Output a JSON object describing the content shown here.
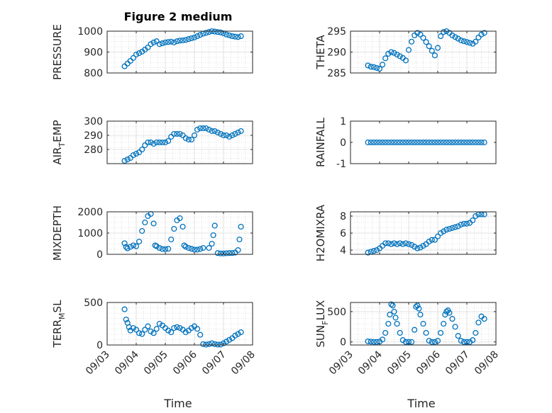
{
  "title": "Figure 2 medium",
  "xlabel": "Time",
  "x_ticks": [
    "09/03",
    "09/04",
    "09/05",
    "09/06",
    "09/07",
    "09/08"
  ],
  "marker_color": "#0072BD",
  "chart_data": [
    {
      "type": "scatter",
      "ylabel": "PRESSURE",
      "ylim": [
        800,
        1000
      ],
      "yticks": [
        "800",
        "900",
        "1000"
      ],
      "xlim": [
        3,
        8
      ],
      "grid": "on",
      "x": [
        3.6,
        3.7,
        3.8,
        3.9,
        4.0,
        4.1,
        4.2,
        4.3,
        4.4,
        4.5,
        4.6,
        4.7,
        4.8,
        4.9,
        5.0,
        5.1,
        5.2,
        5.3,
        5.4,
        5.5,
        5.6,
        5.7,
        5.8,
        5.9,
        6.0,
        6.1,
        6.2,
        6.3,
        6.4,
        6.5,
        6.6,
        6.7,
        6.8,
        6.9,
        7.0,
        7.1,
        7.2,
        7.3,
        7.4,
        7.5,
        7.6
      ],
      "y": [
        832,
        845,
        858,
        872,
        888,
        895,
        902,
        912,
        922,
        938,
        946,
        952,
        938,
        942,
        946,
        948,
        950,
        946,
        952,
        955,
        956,
        958,
        962,
        966,
        970,
        976,
        982,
        988,
        992,
        996,
        1000,
        998,
        996,
        994,
        990,
        984,
        980,
        976,
        974,
        972,
        976
      ]
    },
    {
      "type": "scatter",
      "ylabel": "THETA",
      "ylim": [
        285,
        295
      ],
      "yticks": [
        "285",
        "290",
        "295"
      ],
      "xlim": [
        3,
        8
      ],
      "grid": "on",
      "x": [
        3.6,
        3.7,
        3.8,
        3.9,
        4.0,
        4.1,
        4.2,
        4.3,
        4.4,
        4.5,
        4.6,
        4.7,
        4.8,
        4.9,
        5.0,
        5.1,
        5.2,
        5.3,
        5.4,
        5.5,
        5.6,
        5.7,
        5.8,
        5.9,
        6.0,
        6.1,
        6.2,
        6.3,
        6.4,
        6.5,
        6.6,
        6.7,
        6.8,
        6.9,
        7.0,
        7.1,
        7.2,
        7.3,
        7.4,
        7.5,
        7.6
      ],
      "y": [
        286.8,
        286.5,
        286.4,
        286.2,
        286.0,
        287.0,
        288.5,
        289.6,
        290.0,
        289.8,
        289.4,
        289.0,
        288.6,
        288.0,
        290.5,
        292.5,
        294.0,
        294.6,
        294.2,
        293.4,
        292.4,
        291.4,
        290.3,
        289.2,
        291.0,
        293.8,
        294.8,
        295.0,
        294.6,
        294.0,
        293.6,
        293.2,
        292.8,
        292.6,
        292.4,
        292.2,
        292.0,
        292.5,
        293.5,
        294.2,
        294.6
      ]
    },
    {
      "type": "scatter",
      "ylabel": "AIR_TEMP",
      "ylim": [
        270,
        300
      ],
      "yticks": [
        "280",
        "290",
        "300"
      ],
      "xlim": [
        3,
        8
      ],
      "grid": "on",
      "x": [
        3.6,
        3.7,
        3.8,
        3.9,
        4.0,
        4.1,
        4.2,
        4.3,
        4.4,
        4.5,
        4.6,
        4.7,
        4.8,
        4.9,
        5.0,
        5.1,
        5.2,
        5.3,
        5.4,
        5.5,
        5.6,
        5.7,
        5.8,
        5.9,
        6.0,
        6.1,
        6.2,
        6.3,
        6.4,
        6.5,
        6.6,
        6.7,
        6.8,
        6.9,
        7.0,
        7.1,
        7.2,
        7.3,
        7.4,
        7.5,
        7.6
      ],
      "y": [
        272,
        273,
        274,
        276,
        277,
        278,
        280,
        283,
        285,
        285,
        284,
        285,
        285,
        285,
        285,
        286,
        289,
        291,
        291,
        291,
        290,
        288,
        287,
        287,
        290,
        294,
        295,
        295,
        295,
        294,
        293,
        293,
        292,
        291,
        290,
        290,
        289,
        290,
        291,
        292,
        293
      ]
    },
    {
      "type": "scatter",
      "ylabel": "RAINFALL",
      "ylim": [
        -1,
        1
      ],
      "yticks": [
        "-1",
        "0",
        "1"
      ],
      "xlim": [
        3,
        8
      ],
      "grid": "off",
      "x": [
        3.6,
        3.7,
        3.8,
        3.9,
        4.0,
        4.1,
        4.2,
        4.3,
        4.4,
        4.5,
        4.6,
        4.7,
        4.8,
        4.9,
        5.0,
        5.1,
        5.2,
        5.3,
        5.4,
        5.5,
        5.6,
        5.7,
        5.8,
        5.9,
        6.0,
        6.1,
        6.2,
        6.3,
        6.4,
        6.5,
        6.6,
        6.7,
        6.8,
        6.9,
        7.0,
        7.1,
        7.2,
        7.3,
        7.4,
        7.5,
        7.6
      ],
      "y": [
        0,
        0,
        0,
        0,
        0,
        0,
        0,
        0,
        0,
        0,
        0,
        0,
        0,
        0,
        0,
        0,
        0,
        0,
        0,
        0,
        0,
        0,
        0,
        0,
        0,
        0,
        0,
        0,
        0,
        0,
        0,
        0,
        0,
        0,
        0,
        0,
        0,
        0,
        0,
        0,
        0
      ]
    },
    {
      "type": "scatter",
      "ylabel": "MIXDEPTH",
      "ylim": [
        0,
        2000
      ],
      "yticks": [
        "0",
        "1000",
        "2000"
      ],
      "xlim": [
        3,
        8
      ],
      "grid": "on",
      "x": [
        3.6,
        3.65,
        3.7,
        3.8,
        3.9,
        4.0,
        4.1,
        4.2,
        4.3,
        4.4,
        4.5,
        4.6,
        4.65,
        4.7,
        4.8,
        4.9,
        5.0,
        5.1,
        5.2,
        5.3,
        5.4,
        5.5,
        5.6,
        5.65,
        5.7,
        5.8,
        5.9,
        6.0,
        6.1,
        6.2,
        6.3,
        6.5,
        6.6,
        6.65,
        6.7,
        6.8,
        6.9,
        7.0,
        7.1,
        7.2,
        7.3,
        7.4,
        7.5,
        7.55,
        7.6
      ],
      "y": [
        520,
        350,
        280,
        350,
        420,
        380,
        600,
        1100,
        1500,
        1800,
        1900,
        1450,
        420,
        380,
        300,
        250,
        240,
        260,
        700,
        1200,
        1600,
        1700,
        1300,
        420,
        360,
        300,
        260,
        220,
        220,
        250,
        300,
        300,
        500,
        900,
        1350,
        60,
        40,
        40,
        50,
        60,
        60,
        80,
        200,
        700,
        1300
      ]
    },
    {
      "type": "scatter",
      "ylabel": "H2OMIXRA",
      "ylim": [
        3.5,
        8.5
      ],
      "yticks": [
        "4",
        "6",
        "8"
      ],
      "xlim": [
        3,
        8
      ],
      "grid": "on",
      "x": [
        3.6,
        3.7,
        3.8,
        3.9,
        4.0,
        4.1,
        4.2,
        4.3,
        4.4,
        4.5,
        4.6,
        4.7,
        4.8,
        4.9,
        5.0,
        5.1,
        5.2,
        5.3,
        5.4,
        5.5,
        5.6,
        5.7,
        5.8,
        5.9,
        6.0,
        6.1,
        6.2,
        6.3,
        6.4,
        6.5,
        6.6,
        6.7,
        6.8,
        6.9,
        7.0,
        7.1,
        7.2,
        7.3,
        7.4,
        7.5,
        7.6
      ],
      "y": [
        3.7,
        3.8,
        3.9,
        4.0,
        4.2,
        4.5,
        4.8,
        4.8,
        4.7,
        4.8,
        4.7,
        4.8,
        4.7,
        4.8,
        4.7,
        4.6,
        4.4,
        4.2,
        4.3,
        4.5,
        4.7,
        5.0,
        5.2,
        5.2,
        5.6,
        6.0,
        6.2,
        6.4,
        6.5,
        6.6,
        6.7,
        6.8,
        7.0,
        7.1,
        7.1,
        7.2,
        7.5,
        8.0,
        8.2,
        8.2,
        8.2
      ]
    },
    {
      "type": "scatter",
      "ylabel": "TERR_MSL",
      "ylim": [
        0,
        500
      ],
      "yticks": [
        "0",
        "500"
      ],
      "xlim": [
        3,
        8
      ],
      "grid": "on",
      "x": [
        3.6,
        3.65,
        3.7,
        3.75,
        3.8,
        3.9,
        4.0,
        4.1,
        4.2,
        4.3,
        4.4,
        4.5,
        4.6,
        4.7,
        4.8,
        4.9,
        5.0,
        5.1,
        5.2,
        5.3,
        5.4,
        5.5,
        5.6,
        5.7,
        5.8,
        5.9,
        6.0,
        6.1,
        6.2,
        6.3,
        6.4,
        6.5,
        6.6,
        6.7,
        6.8,
        6.9,
        7.0,
        7.1,
        7.2,
        7.3,
        7.4,
        7.5,
        7.6
      ],
      "y": [
        420,
        300,
        260,
        210,
        170,
        200,
        180,
        140,
        130,
        180,
        220,
        160,
        140,
        190,
        250,
        230,
        200,
        170,
        150,
        200,
        210,
        200,
        180,
        150,
        170,
        200,
        220,
        190,
        120,
        10,
        5,
        10,
        20,
        10,
        5,
        5,
        20,
        40,
        60,
        80,
        110,
        130,
        150
      ]
    },
    {
      "type": "scatter",
      "ylabel": "SUN_FLUX",
      "ylim": [
        -50,
        650
      ],
      "yticks": [
        "0",
        "500"
      ],
      "xlim": [
        3,
        8
      ],
      "grid": "on",
      "x": [
        3.6,
        3.7,
        3.8,
        3.9,
        4.0,
        4.1,
        4.2,
        4.3,
        4.35,
        4.4,
        4.45,
        4.5,
        4.55,
        4.6,
        4.7,
        4.8,
        4.9,
        5.0,
        5.1,
        5.2,
        5.25,
        5.3,
        5.35,
        5.4,
        5.5,
        5.6,
        5.7,
        5.8,
        5.9,
        6.0,
        6.1,
        6.2,
        6.25,
        6.3,
        6.35,
        6.4,
        6.5,
        6.6,
        6.7,
        6.8,
        6.9,
        7.0,
        7.1,
        7.2,
        7.3,
        7.4,
        7.5,
        7.6
      ],
      "y": [
        10,
        5,
        0,
        0,
        5,
        40,
        150,
        300,
        450,
        620,
        600,
        500,
        400,
        300,
        150,
        30,
        0,
        0,
        0,
        200,
        580,
        600,
        550,
        450,
        300,
        150,
        20,
        0,
        0,
        20,
        150,
        300,
        450,
        500,
        520,
        480,
        380,
        250,
        100,
        20,
        0,
        0,
        0,
        30,
        150,
        320,
        420,
        380
      ]
    }
  ]
}
